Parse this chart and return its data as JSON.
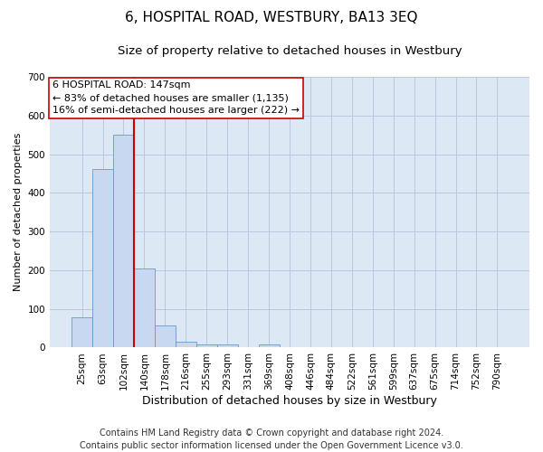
{
  "title": "6, HOSPITAL ROAD, WESTBURY, BA13 3EQ",
  "subtitle": "Size of property relative to detached houses in Westbury",
  "xlabel": "Distribution of detached houses by size in Westbury",
  "ylabel": "Number of detached properties",
  "categories": [
    "25sqm",
    "63sqm",
    "102sqm",
    "140sqm",
    "178sqm",
    "216sqm",
    "255sqm",
    "293sqm",
    "331sqm",
    "369sqm",
    "408sqm",
    "446sqm",
    "484sqm",
    "522sqm",
    "561sqm",
    "599sqm",
    "637sqm",
    "675sqm",
    "714sqm",
    "752sqm",
    "790sqm"
  ],
  "values": [
    78,
    462,
    551,
    205,
    57,
    14,
    8,
    8,
    0,
    8,
    0,
    0,
    0,
    0,
    0,
    0,
    0,
    0,
    0,
    0,
    0
  ],
  "bar_color": "#c8d8f0",
  "bar_edge_color": "#6699cc",
  "vline_x": 2.5,
  "vline_color": "#cc0000",
  "annotation_text": "6 HOSPITAL ROAD: 147sqm\n← 83% of detached houses are smaller (1,135)\n16% of semi-detached houses are larger (222) →",
  "annotation_box_color": "white",
  "annotation_box_edge_color": "#cc0000",
  "ylim": [
    0,
    700
  ],
  "yticks": [
    0,
    100,
    200,
    300,
    400,
    500,
    600,
    700
  ],
  "footer_line1": "Contains HM Land Registry data © Crown copyright and database right 2024.",
  "footer_line2": "Contains public sector information licensed under the Open Government Licence v3.0.",
  "title_fontsize": 11,
  "subtitle_fontsize": 9.5,
  "xlabel_fontsize": 9,
  "ylabel_fontsize": 8,
  "tick_fontsize": 7.5,
  "footer_fontsize": 7,
  "annotation_fontsize": 8,
  "background_color": "#ffffff",
  "plot_bg_color": "#dde8f5",
  "grid_color": "#b8c8e0",
  "grid_alpha": 1.0
}
